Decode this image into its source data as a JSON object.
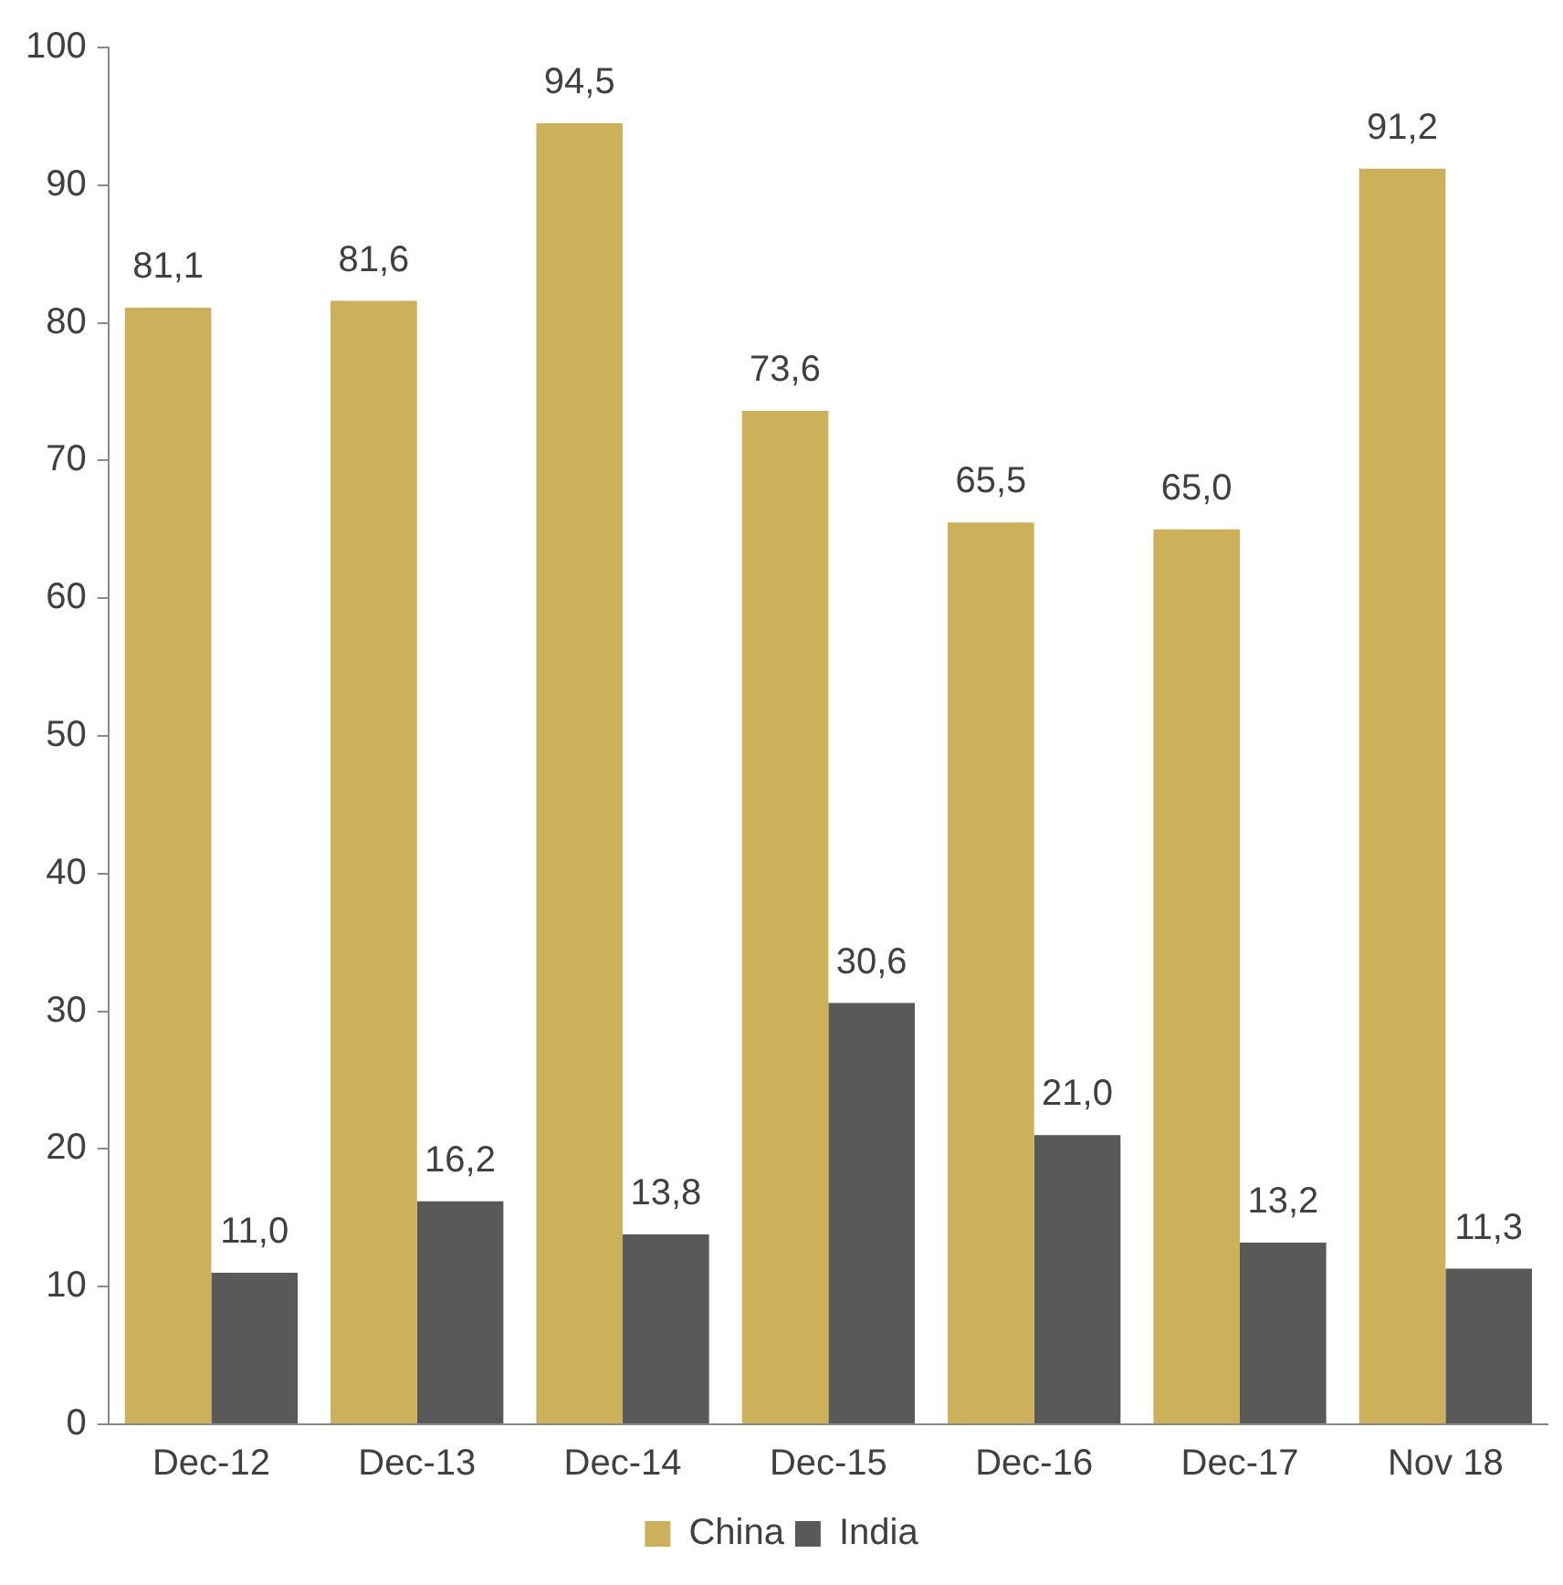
{
  "chart_data": {
    "type": "bar",
    "categories": [
      "Dec-12",
      "Dec-13",
      "Dec-14",
      "Dec-15",
      "Dec-16",
      "Dec-17",
      "Nov 18"
    ],
    "series": [
      {
        "name": "China",
        "color": "#cdb05a",
        "values": [
          81.1,
          81.6,
          94.5,
          73.6,
          65.5,
          65.0,
          91.2
        ],
        "value_labels": [
          "81,1",
          "81,6",
          "94,5",
          "73,6",
          "65,5",
          "65,0",
          "91,2"
        ]
      },
      {
        "name": "India",
        "color": "#595959",
        "values": [
          11.0,
          16.2,
          13.8,
          30.6,
          21.0,
          13.2,
          11.3
        ],
        "value_labels": [
          "11,0",
          "16,2",
          "13,8",
          "30,6",
          "21,0",
          "13,2",
          "11,3"
        ]
      }
    ],
    "ylim": [
      0,
      100
    ],
    "yticks": [
      0,
      10,
      20,
      30,
      40,
      50,
      60,
      70,
      80,
      90,
      100
    ],
    "grid": false,
    "legend": "bottom"
  }
}
